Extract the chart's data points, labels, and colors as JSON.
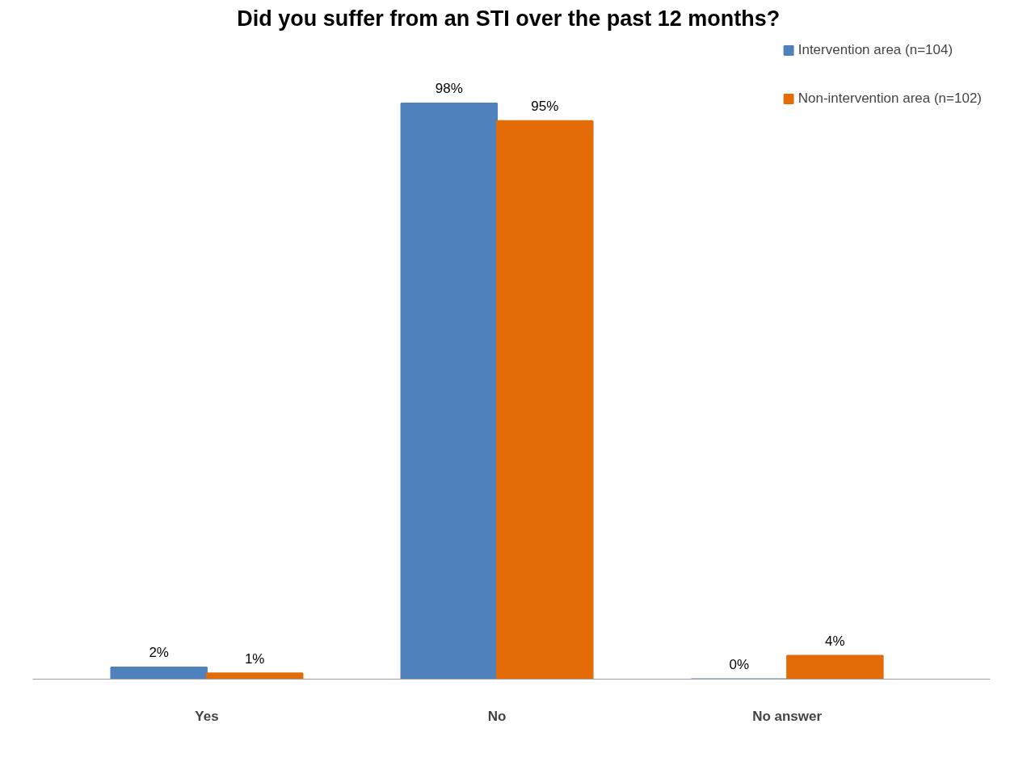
{
  "chart_data": {
    "type": "bar",
    "title": "Did you suffer from an STI over  the past 12 months?",
    "categories": [
      "Yes",
      "No",
      "No answer"
    ],
    "series": [
      {
        "name": "Intervention area (n=104)",
        "color": "#4f81bd",
        "values": [
          2,
          98,
          0
        ],
        "value_labels": [
          "2%",
          "98%",
          "0%"
        ]
      },
      {
        "name": "Non-intervention area (n=102)",
        "color": "#e36c09",
        "values": [
          1,
          95,
          4
        ],
        "value_labels": [
          "1%",
          "95%",
          "4%"
        ]
      }
    ],
    "legend": "right",
    "grid": false
  }
}
